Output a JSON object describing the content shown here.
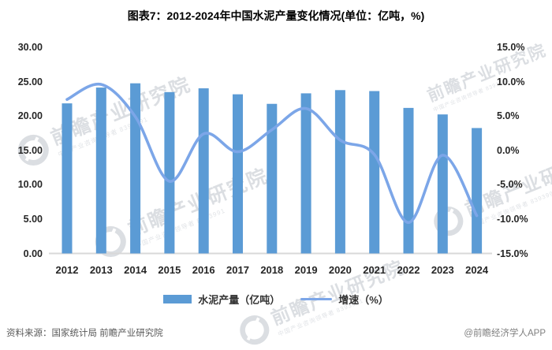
{
  "title": "图表7：2012-2024年中国水泥产量变化情况(单位：亿吨，%)",
  "chart_data": {
    "type": "bar",
    "subtype": "combo-bar-line",
    "categories": [
      "2012",
      "2013",
      "2014",
      "2015",
      "2016",
      "2017",
      "2018",
      "2019",
      "2020",
      "2021",
      "2022",
      "2023",
      "2024"
    ],
    "series": [
      {
        "name": "水泥产量（亿吨）",
        "type": "bar",
        "axis": "left",
        "values": [
          21.84,
          24.14,
          24.76,
          23.48,
          24.03,
          23.16,
          21.77,
          23.3,
          23.77,
          23.63,
          21.18,
          20.23,
          18.25
        ]
      },
      {
        "name": "增速（%）",
        "type": "line",
        "axis": "right",
        "values": [
          7.4,
          9.6,
          4.9,
          -4.5,
          2.4,
          -0.2,
          3.0,
          6.1,
          1.5,
          -0.6,
          -10.5,
          -0.7,
          -9.5
        ]
      }
    ],
    "left_axis": {
      "min": 0,
      "max": 30,
      "tick_step": 5,
      "tick_labels": [
        "30.00",
        "25.00",
        "20.00",
        "15.00",
        "10.00",
        "5.00",
        "0.00"
      ]
    },
    "right_axis": {
      "min": -15,
      "max": 15,
      "tick_step": 5,
      "tick_labels": [
        "15.0%",
        "10.0%",
        "5.0%",
        "0.0%",
        "-5.0%",
        "-10.0%",
        "-15.0%"
      ]
    },
    "grid": false,
    "legend_position": "bottom"
  },
  "legend": {
    "bars": "水泥产量（亿吨）",
    "line": "增速（%）"
  },
  "footer": {
    "source": "资料来源：国家统计局 前瞻产业研究院",
    "copyright": "@前瞻经济学人APP"
  },
  "watermark": {
    "brand": "前瞻产业研究院",
    "slogan": "中国产业咨询领导者",
    "digits": "8393991"
  },
  "colors": {
    "bar": "#5B9BD5",
    "line": "#7CA6E8",
    "axis_line": "#d8d8d8",
    "text": "#262626",
    "watermark": "#b9bfc7"
  }
}
